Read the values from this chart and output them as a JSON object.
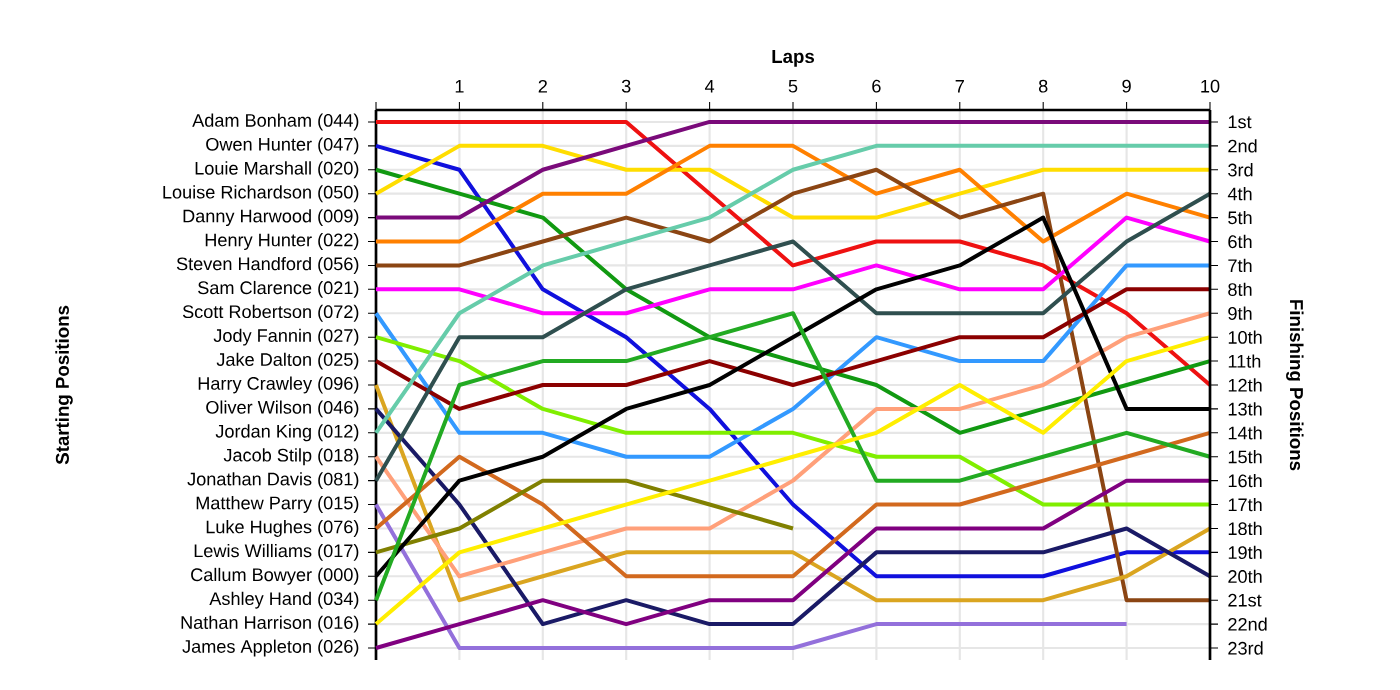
{
  "chart_data": {
    "type": "line",
    "xlabel": "Laps",
    "y2label": "Finishing Positions",
    "x": [
      0,
      1,
      2,
      3,
      4,
      5,
      6,
      7,
      8,
      9,
      10
    ],
    "xlim": [
      0,
      10
    ],
    "xticks": [
      {
        "value": 0,
        "label": null
      },
      1,
      2,
      3,
      4,
      5,
      6,
      7,
      8,
      9,
      10
    ],
    "annotations": [
      "Adam Bonham (044)",
      "Owen Hunter (047)",
      "Louie Marshall (020)",
      "Louise Richardson (050)",
      "Danny Harwood (009)",
      "Henry Hunter (022)",
      "Steven Handford (056)",
      "Sam Clarence (021)",
      "Scott Robertson (072)",
      "Jody Fannin (027)",
      "Jake Dalton (025)",
      "Harry Crawley (096)",
      "Oliver Wilson (046)",
      "Jordan King (012)",
      "Jacob Stilp (018)",
      "Jonathan Davis (081)",
      "Matthew Parry (015)",
      "Luke Hughes (076)",
      "Lewis Williams (017)",
      "Callum Bowyer (000)",
      "Ashley Hand (034)",
      "Nathan Harrison (016)",
      "James Appleton (026)",
      "Starting Positions"
    ],
    "y2lim": [
      23.5,
      0.5
    ],
    "y2ticks": [
      {
        "value": 1,
        "label": "1st"
      },
      {
        "value": 2,
        "label": "2nd"
      },
      {
        "value": 3,
        "label": "3rd"
      },
      {
        "value": 4,
        "label": "4th"
      },
      {
        "value": 5,
        "label": "5th"
      },
      {
        "value": 6,
        "label": "6th"
      },
      {
        "value": 7,
        "label": "7th"
      },
      {
        "value": 8,
        "label": "8th"
      },
      {
        "value": 9,
        "label": "9th"
      },
      {
        "value": 10,
        "label": "10th"
      },
      {
        "value": 11,
        "label": "11th"
      },
      {
        "value": 12,
        "label": "12th"
      },
      {
        "value": 13,
        "label": "13th"
      },
      {
        "value": 14,
        "label": "14th"
      },
      {
        "value": 15,
        "label": "15th"
      },
      {
        "value": 16,
        "label": "16th"
      },
      {
        "value": 17,
        "label": "17th"
      },
      {
        "value": 18,
        "label": "18th"
      },
      {
        "value": 19,
        "label": "19th"
      },
      {
        "value": 20,
        "label": "20th"
      },
      {
        "value": 21,
        "label": "21st"
      },
      {
        "value": 22,
        "label": "22nd"
      },
      {
        "value": 23,
        "label": "23rd"
      }
    ],
    "grid": true,
    "marker": "none",
    "line_style": "solid",
    "series": [
      {
        "axis": "y2",
        "color": "#ee1111",
        "values": [
          1,
          1,
          1,
          1,
          4,
          7,
          6,
          6,
          7,
          9,
          12
        ]
      },
      {
        "axis": "y2",
        "color": "#1010dd",
        "values": [
          2,
          3,
          8,
          10,
          13,
          17,
          20,
          20,
          20,
          19,
          19
        ]
      },
      {
        "axis": "y2",
        "color": "#119911",
        "values": [
          3,
          4,
          5,
          8,
          10,
          11,
          12,
          14,
          13,
          12,
          11
        ]
      },
      {
        "axis": "y2",
        "color": "#ffdd00",
        "values": [
          4,
          2,
          2,
          3,
          3,
          5,
          5,
          4,
          3,
          3,
          3
        ]
      },
      {
        "axis": "y2",
        "color": "#7a0a7a",
        "values": [
          5,
          5,
          3,
          2,
          1,
          1,
          1,
          1,
          1,
          1,
          1
        ]
      },
      {
        "axis": "y2",
        "color": "#ff8000",
        "values": [
          6,
          6,
          4,
          4,
          2,
          2,
          4,
          3,
          6,
          4,
          5
        ]
      },
      {
        "axis": "y2",
        "color": "#8b4513",
        "values": [
          7,
          7,
          6,
          5,
          6,
          4,
          3,
          5,
          4,
          21,
          21
        ]
      },
      {
        "axis": "y2",
        "color": "#ff00ff",
        "values": [
          8,
          8,
          9,
          9,
          8,
          8,
          7,
          8,
          8,
          5,
          6
        ]
      },
      {
        "axis": "y2",
        "color": "#3399ff",
        "values": [
          9,
          14,
          14,
          15,
          15,
          13,
          10,
          11,
          11,
          7,
          7
        ]
      },
      {
        "axis": "y2",
        "color": "#80ee00",
        "values": [
          10,
          11,
          13,
          14,
          14,
          14,
          15,
          15,
          17,
          17,
          17
        ]
      },
      {
        "axis": "y2",
        "color": "#8b0000",
        "values": [
          11,
          13,
          12,
          12,
          11,
          12,
          11,
          10,
          10,
          8,
          8
        ]
      },
      {
        "axis": "y2",
        "color": "#daa520",
        "values": [
          12,
          21,
          20,
          19,
          19,
          19,
          21,
          21,
          21,
          20,
          18
        ]
      },
      {
        "axis": "y2",
        "color": "#1a1a66",
        "values": [
          13,
          17,
          22,
          21,
          22,
          22,
          19,
          19,
          19,
          18,
          20
        ]
      },
      {
        "axis": "y2",
        "color": "#66ccaa",
        "values": [
          14,
          9,
          7,
          6,
          5,
          3,
          2,
          2,
          2,
          2,
          2
        ]
      },
      {
        "axis": "y2",
        "color": "#ffa07a",
        "values": [
          15,
          20,
          19,
          18,
          18,
          16,
          13,
          13,
          12,
          10,
          9
        ]
      },
      {
        "axis": "y2",
        "color": "#2f4f4f",
        "values": [
          16,
          10,
          10,
          8,
          7,
          6,
          9,
          9,
          9,
          6,
          4
        ]
      },
      {
        "axis": "y2",
        "color": "#9370db",
        "values": [
          17,
          23,
          23,
          23,
          23,
          23,
          22,
          22,
          22,
          22,
          null
        ]
      },
      {
        "axis": "y2",
        "color": "#d2691e",
        "values": [
          18,
          15,
          17,
          20,
          20,
          20,
          17,
          17,
          16,
          15,
          14
        ]
      },
      {
        "axis": "y2",
        "color": "#808000",
        "values": [
          19,
          18,
          16,
          16,
          17,
          18,
          null,
          null,
          null,
          null,
          null
        ]
      },
      {
        "axis": "y2",
        "color": "#000000",
        "values": [
          20,
          16,
          15,
          13,
          12,
          10,
          8,
          7,
          5,
          13,
          13
        ]
      },
      {
        "axis": "y2",
        "color": "#22aa22",
        "values": [
          21,
          12,
          11,
          11,
          10,
          9,
          16,
          16,
          15,
          14,
          15
        ]
      },
      {
        "axis": "y2",
        "color": "#ffee00",
        "values": [
          22,
          19,
          18,
          17,
          16,
          15,
          14,
          12,
          14,
          11,
          10
        ]
      },
      {
        "axis": "y2",
        "color": "#800080",
        "values": [
          23,
          22,
          21,
          22,
          21,
          21,
          18,
          18,
          18,
          16,
          16
        ]
      }
    ]
  }
}
